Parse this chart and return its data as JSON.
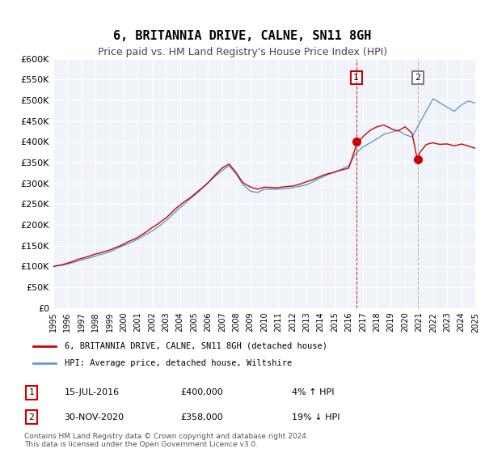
{
  "title": "6, BRITANNIA DRIVE, CALNE, SN11 8GH",
  "subtitle": "Price paid vs. HM Land Registry's House Price Index (HPI)",
  "legend_label_red": "6, BRITANNIA DRIVE, CALNE, SN11 8GH (detached house)",
  "legend_label_blue": "HPI: Average price, detached house, Wiltshire",
  "marker1_label": "1",
  "marker1_date": "15-JUL-2016",
  "marker1_price": "£400,000",
  "marker1_hpi": "4% ↑ HPI",
  "marker1_x": 2016.54,
  "marker1_y": 400000,
  "marker2_label": "2",
  "marker2_date": "30-NOV-2020",
  "marker2_price": "£358,000",
  "marker2_hpi": "19% ↓ HPI",
  "marker2_x": 2020.92,
  "marker2_y": 358000,
  "vline1_x": 2016.54,
  "vline2_x": 2020.92,
  "xlim": [
    1995,
    2025
  ],
  "ylim": [
    0,
    600000
  ],
  "yticks": [
    0,
    50000,
    100000,
    150000,
    200000,
    250000,
    300000,
    350000,
    400000,
    450000,
    500000,
    550000,
    600000
  ],
  "ytick_labels": [
    "£0",
    "£50K",
    "£100K",
    "£150K",
    "£200K",
    "£250K",
    "£300K",
    "£350K",
    "£400K",
    "£450K",
    "£500K",
    "£550K",
    "£600K"
  ],
  "xticks": [
    1995,
    1996,
    1997,
    1998,
    1999,
    2000,
    2001,
    2002,
    2003,
    2004,
    2005,
    2006,
    2007,
    2008,
    2009,
    2010,
    2011,
    2012,
    2013,
    2014,
    2015,
    2016,
    2017,
    2018,
    2019,
    2020,
    2021,
    2022,
    2023,
    2024,
    2025
  ],
  "red_color": "#cc0000",
  "blue_color": "#6699cc",
  "background_color": "#f0f4fa",
  "title_fontsize": 11,
  "subtitle_fontsize": 9,
  "footer_text": "Contains HM Land Registry data © Crown copyright and database right 2024.\nThis data is licensed under the Open Government Licence v3.0.",
  "table_row1": [
    "1",
    "15-JUL-2016",
    "£400,000",
    "4% ↑ HPI"
  ],
  "table_row2": [
    "2",
    "30-NOV-2020",
    "£358,000",
    "19% ↓ HPI"
  ]
}
